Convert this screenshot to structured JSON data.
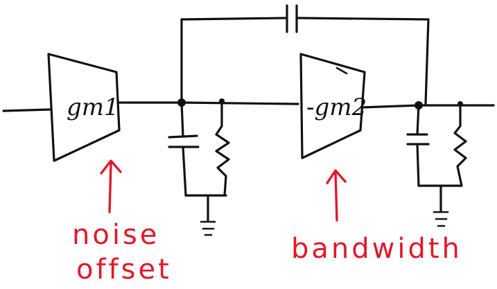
{
  "amplifiers": {
    "first": "gm1",
    "second": "-gm2"
  },
  "annotations": {
    "noise_line1": "noise",
    "noise_line2": "offset",
    "bandwidth": "bandwidth"
  },
  "colors": {
    "ink": "#111111",
    "annotation": "#e0192a"
  }
}
